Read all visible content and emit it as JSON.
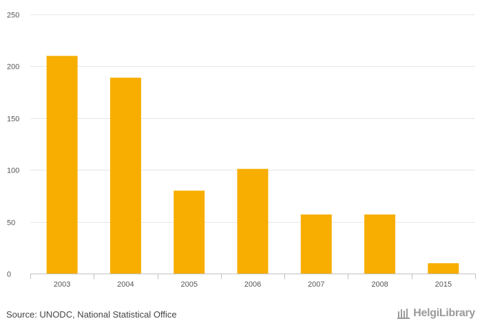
{
  "chart_data": {
    "type": "bar",
    "categories": [
      "2003",
      "2004",
      "2005",
      "2006",
      "2007",
      "2008",
      "2015"
    ],
    "values": [
      210,
      189,
      80,
      101,
      57,
      57,
      10
    ],
    "ylim": [
      0,
      250
    ],
    "yticks": [
      0,
      50,
      100,
      150,
      200,
      250
    ],
    "grid": true,
    "bar_color": "#F7AE00"
  },
  "footer": {
    "source": "Source: UNODC, National Statistical Office",
    "brand": "HelgiLibrary",
    "brand_icon": "building-icon"
  }
}
